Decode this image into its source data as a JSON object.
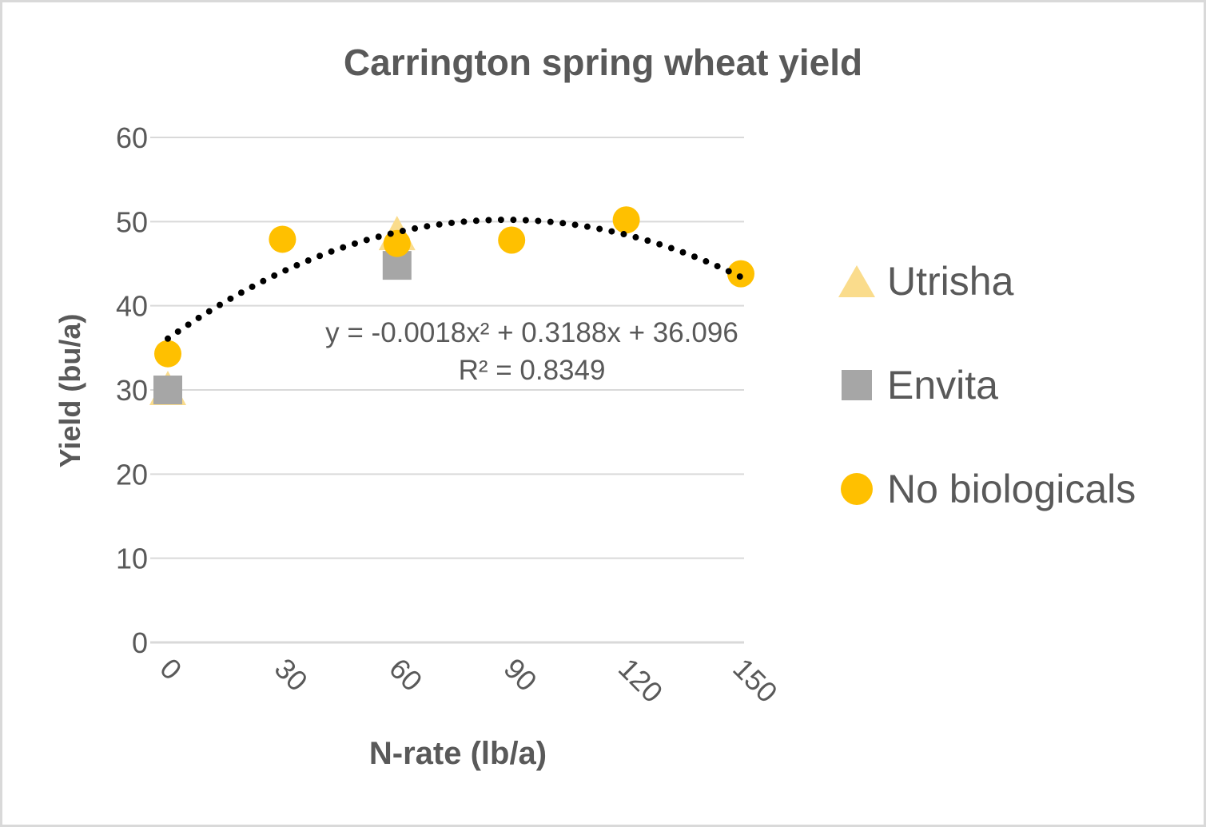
{
  "page": {
    "background_color": "#FFFFFF",
    "border_color": "#D9D9D9",
    "text_color": "#595959"
  },
  "chart": {
    "title": "Carrington spring wheat yield",
    "y_axis_title": "Yield (bu/a)",
    "x_axis_title": "N-rate (lb/a)",
    "annotation": {
      "equation": "y = -0.0018x² + 0.3188x + 36.096",
      "r_squared": "R² = 0.8349"
    },
    "legend": [
      {
        "label": "Utrisha",
        "marker": "triangle-icon",
        "color": "#FADC8C"
      },
      {
        "label": "Envita",
        "marker": "square-icon",
        "color": "#A6A6A6"
      },
      {
        "label": "No biologicals",
        "marker": "circle-icon",
        "color": "#FFC000"
      }
    ]
  },
  "chart_data": {
    "type": "scatter",
    "title": "Carrington spring wheat yield",
    "xlabel": "N-rate (lb/a)",
    "ylabel": "Yield (bu/a)",
    "xlim": [
      0,
      150
    ],
    "ylim": [
      0,
      60
    ],
    "x_ticks": [
      0,
      30,
      60,
      90,
      120,
      150
    ],
    "y_ticks": [
      0,
      10,
      20,
      30,
      40,
      50,
      60
    ],
    "grid": "horizontal",
    "grid_color": "#D9D9D9",
    "tick_label_color": "#595959",
    "legend_position": "right",
    "series": [
      {
        "name": "Utrisha",
        "marker": "triangle",
        "color": "#FADC8C",
        "points": [
          [
            0,
            30
          ],
          [
            60,
            48.4
          ]
        ]
      },
      {
        "name": "Envita",
        "marker": "square",
        "color": "#A6A6A6",
        "points": [
          [
            0,
            30
          ],
          [
            60,
            44.8
          ]
        ]
      },
      {
        "name": "No biologicals",
        "marker": "circle",
        "color": "#FFC000",
        "points": [
          [
            0,
            34.3
          ],
          [
            30,
            47.9
          ],
          [
            60,
            47.4
          ],
          [
            90,
            47.8
          ],
          [
            120,
            50.2
          ],
          [
            150,
            43.8
          ]
        ]
      }
    ],
    "trendline": {
      "type": "polynomial",
      "degree": 2,
      "a": -0.0018,
      "b": 0.3188,
      "c": 36.096,
      "r2": 0.8349,
      "x_range": [
        0,
        150
      ],
      "style": "dotted",
      "color": "#000000"
    }
  }
}
